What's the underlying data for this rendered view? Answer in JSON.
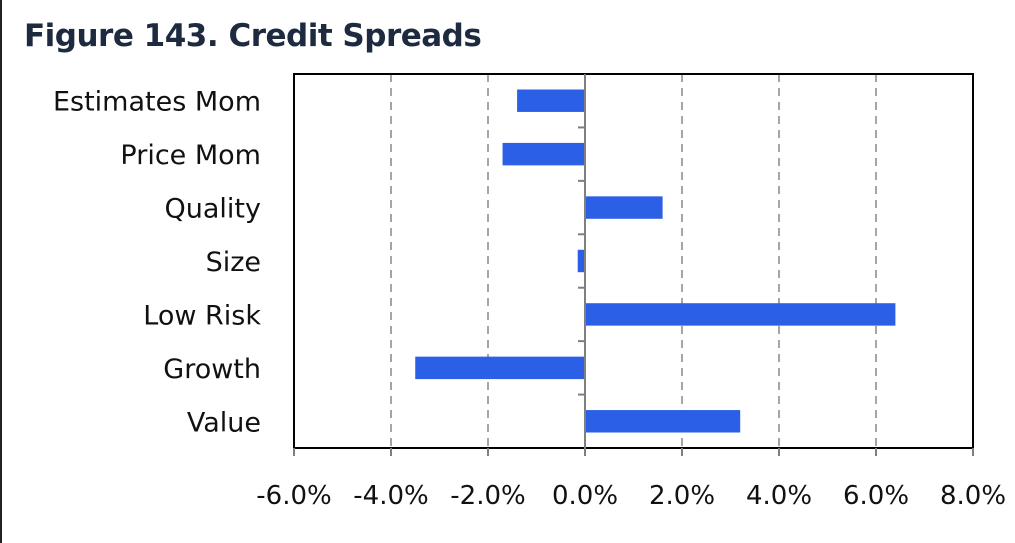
{
  "title": "Figure 143. Credit Spreads",
  "chart_data": {
    "type": "bar",
    "orientation": "horizontal",
    "title": "Figure 143. Credit Spreads",
    "xlabel": "",
    "ylabel": "",
    "categories": [
      "Estimates Mom",
      "Price Mom",
      "Quality",
      "Size",
      "Low Risk",
      "Growth",
      "Value"
    ],
    "values": [
      -1.4,
      -1.7,
      1.6,
      -0.15,
      6.4,
      -3.5,
      3.2
    ],
    "xlim": [
      -6.0,
      8.0
    ],
    "xticks": [
      -6.0,
      -4.0,
      -2.0,
      0.0,
      2.0,
      4.0,
      6.0,
      8.0
    ],
    "xtick_labels": [
      "-6.0%",
      "-4.0%",
      "-2.0%",
      "0.0%",
      "2.0%",
      "4.0%",
      "6.0%",
      "8.0%"
    ],
    "grid": "vertical-dashed",
    "legend": "none",
    "bar_color": "#2b5fe6",
    "grid_color": "#a6a6a6",
    "axis_color": "#000000"
  }
}
